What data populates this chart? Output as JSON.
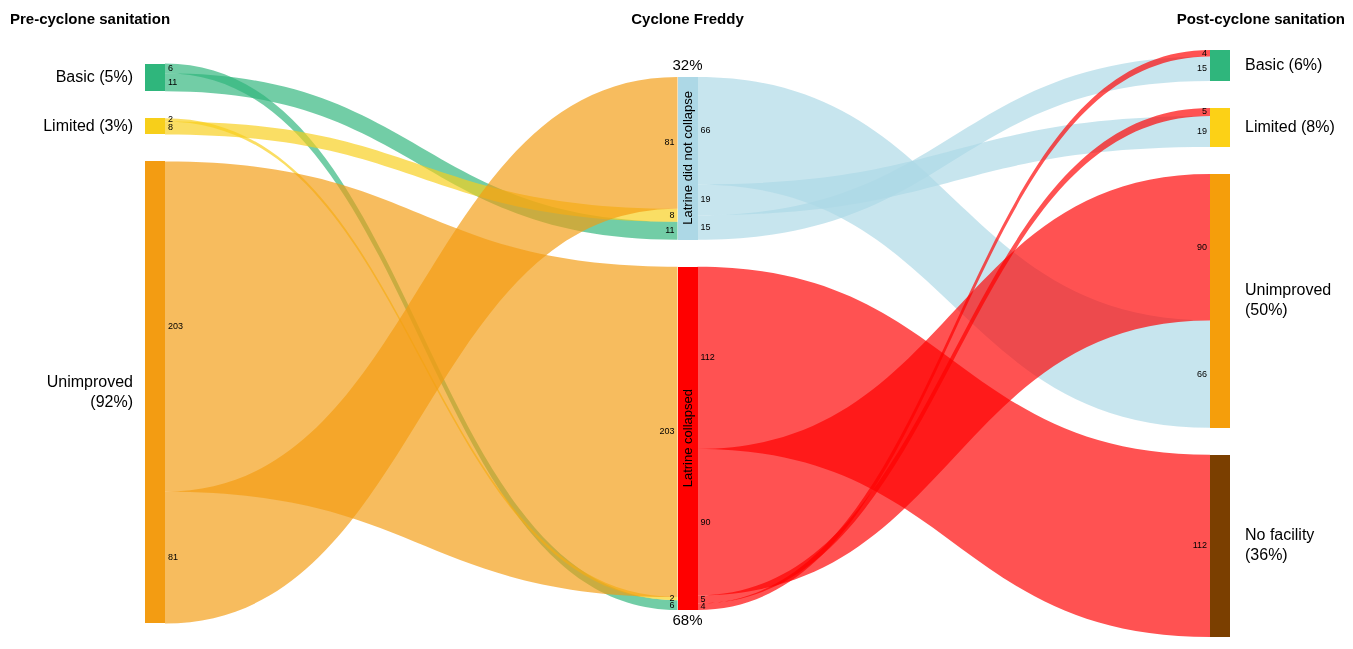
{
  "chart_data": {
    "type": "other",
    "categories": [
      "Latrine did not collapse",
      "Latrine collapsed",
      "Basic (6%)",
      "Limited (8%)",
      "Unimproved (50%)",
      "No facility (36%)"
    ],
    "colors": [
      "#add8e6",
      "#ff0000",
      "#2fb67c",
      "#fcd116",
      "#f59e0b",
      "#7b3f00"
    ],
    "series": [
      {
        "name": "Basic (5%)",
        "color": "#2fb67c",
        "values": [
          11,
          6,
          null,
          null,
          null,
          null
        ]
      },
      {
        "name": "Limited (3%)",
        "color": "#f7cf1a",
        "values": [
          8,
          2,
          null,
          null,
          null,
          null
        ]
      },
      {
        "name": "Unimproved (92%)",
        "color": "#f39c12",
        "values": [
          81,
          203,
          null,
          null,
          null,
          null
        ]
      },
      {
        "color": "#add8e6",
        "values": [
          null,
          null,
          15,
          19,
          66,
          null
        ]
      },
      {
        "color": "#ff0000",
        "values": [
          null,
          null,
          4,
          5,
          90,
          112
        ]
      }
    ],
    "data_labels": true,
    "legend": "left",
    "annotations": [
      "Pre-cyclone sanitation",
      "Cyclone Freddy",
      "Post-cyclone sanitation",
      "32%",
      "68%",
      "11",
      "6",
      "8",
      "2",
      "81",
      "203",
      "15",
      "19",
      "66",
      "4",
      "5",
      "90",
      "112"
    ]
  }
}
